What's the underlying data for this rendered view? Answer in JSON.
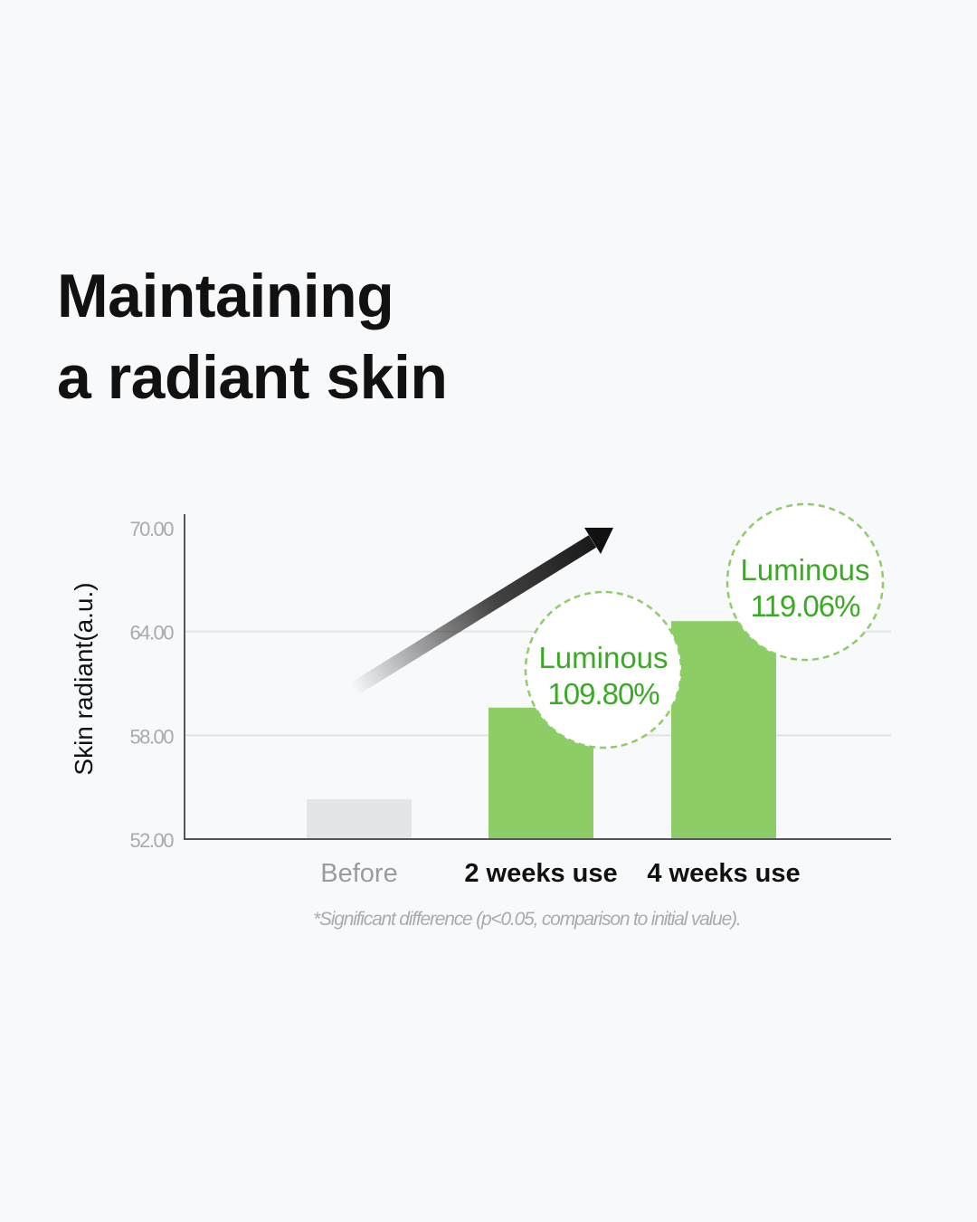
{
  "title": {
    "line1": "Maintaining",
    "line2": "a radiant skin"
  },
  "chart_data": {
    "type": "bar",
    "ylabel": "Skin radiant(a.u.)",
    "xlabel": "",
    "ylim": [
      52,
      70
    ],
    "yticks": [
      52,
      58,
      64,
      70
    ],
    "ytick_labels": [
      "52.00",
      "58.00",
      "64.00",
      "70.00"
    ],
    "grid": true,
    "categories": [
      "Before",
      "2 weeks use",
      "4 weeks use"
    ],
    "values": [
      54.3,
      59.6,
      64.6
    ],
    "bar_colors": [
      "#e3e5e9",
      "#8ccd65",
      "#8ccd65"
    ],
    "annotations": [
      {
        "category": "2 weeks use",
        "line1": "Luminous",
        "line2": "109.80%"
      },
      {
        "category": "4 weeks use",
        "line1": "Luminous",
        "line2": "119.06%"
      }
    ],
    "annotation_color": "#3aaa25",
    "footnote": "*Significant difference (p<0.05, comparison to initial value)."
  }
}
